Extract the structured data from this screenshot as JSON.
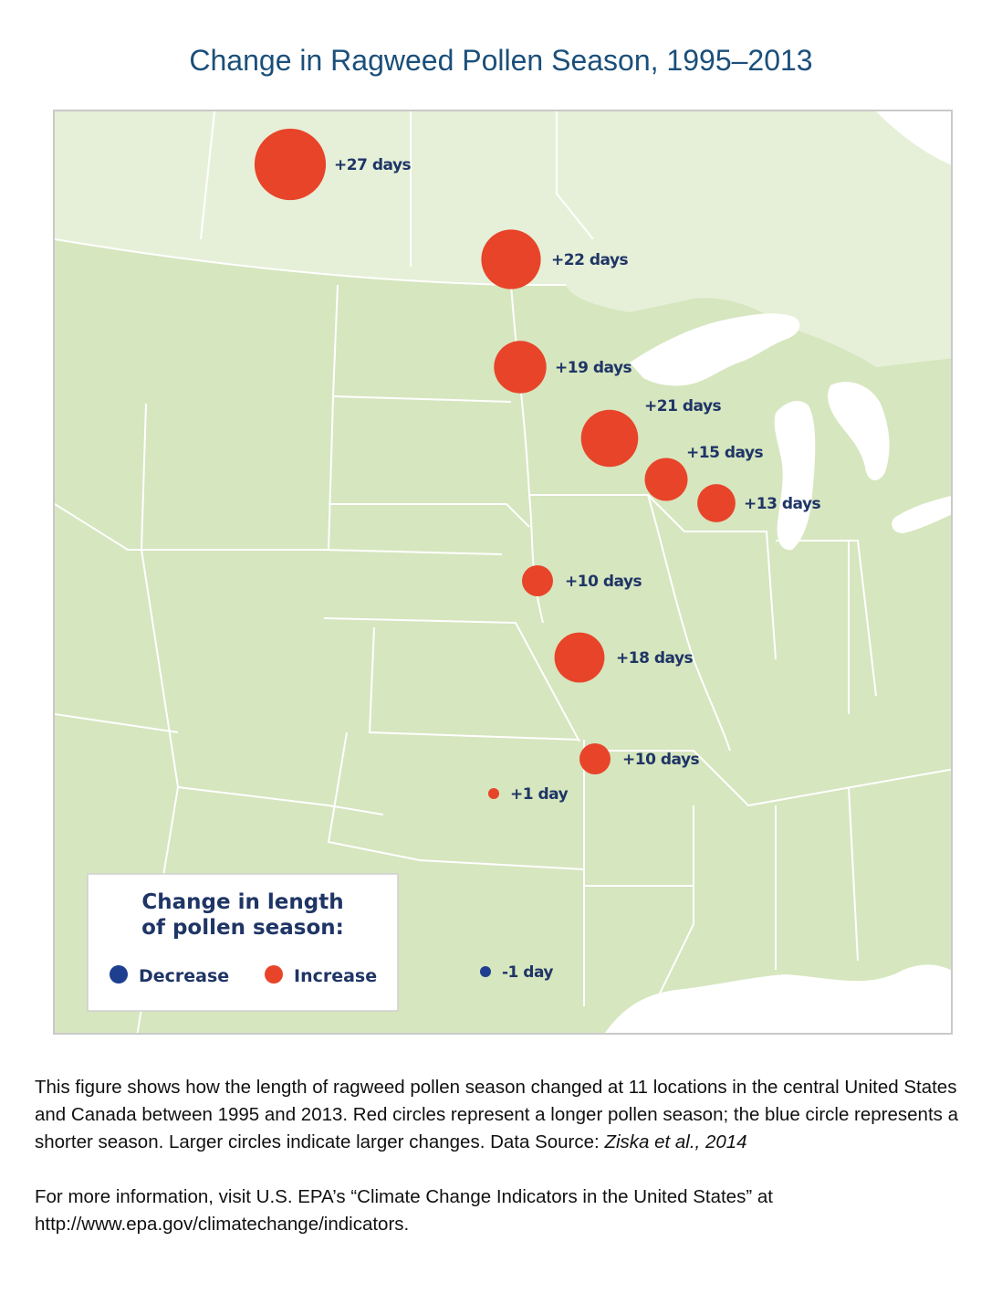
{
  "title": "Change in Ragweed Pollen Season, 1995–2013",
  "legend": {
    "title_line1": "Change in length",
    "title_line2": "of pollen season:",
    "decrease_label": "Decrease",
    "increase_label": "Increase"
  },
  "colors": {
    "increase": "#e8442a",
    "decrease": "#1e3f8f",
    "land_us": "#d6e6bf",
    "land_canada": "#e6f0d8",
    "water": "#ffffff",
    "border": "#ffffff",
    "label_text": "#1f3566",
    "title_text": "#1b4f7a"
  },
  "locations": [
    {
      "change_days": 27,
      "label": "+27 days",
      "type": "increase"
    },
    {
      "change_days": 22,
      "label": "+22 days",
      "type": "increase"
    },
    {
      "change_days": 19,
      "label": "+19 days",
      "type": "increase"
    },
    {
      "change_days": 21,
      "label": "+21 days",
      "type": "increase"
    },
    {
      "change_days": 15,
      "label": "+15 days",
      "type": "increase"
    },
    {
      "change_days": 13,
      "label": "+13 days",
      "type": "increase"
    },
    {
      "change_days": 10,
      "label": "+10 days",
      "type": "increase"
    },
    {
      "change_days": 18,
      "label": "+18 days",
      "type": "increase"
    },
    {
      "change_days": 10,
      "label": "+10 days",
      "type": "increase"
    },
    {
      "change_days": 1,
      "label": "+1 day",
      "type": "increase"
    },
    {
      "change_days": -1,
      "label": "-1 day",
      "type": "decrease"
    }
  ],
  "caption": {
    "text": "This figure shows how the length of ragweed pollen season changed at 11 locations in the central United States and Canada between 1995 and 2013. Red circles represent a longer pollen season; the blue circle represents a shorter season. Larger circles indicate larger changes. Data Source: ",
    "source": "Ziska et al., 2014",
    "more_info": "For more information, visit U.S. EPA’s “Climate Change Indicators in the United States” at http://www.epa.gov/climatechange/indicators."
  }
}
